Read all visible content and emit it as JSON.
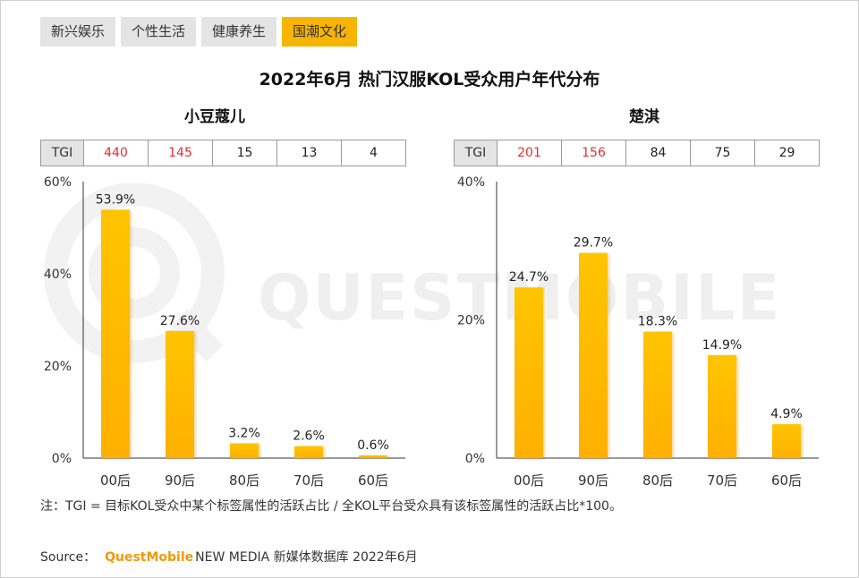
{
  "tabs": [
    {
      "label": "新兴娱乐",
      "active": false
    },
    {
      "label": "个性生活",
      "active": false
    },
    {
      "label": "健康养生",
      "active": false
    },
    {
      "label": "国潮文化",
      "active": true
    }
  ],
  "title": "2022年6月 热门汉服KOL受众用户年代分布",
  "watermark": "QUESTMOBILE",
  "tgi_label": "TGI",
  "chart_data": [
    {
      "type": "bar",
      "title": "小豆蔻儿",
      "categories": [
        "00后",
        "90后",
        "80后",
        "70后",
        "60后"
      ],
      "values": [
        53.9,
        27.6,
        3.2,
        2.6,
        0.6
      ],
      "value_labels": [
        "53.9%",
        "27.6%",
        "3.2%",
        "2.6%",
        "0.6%"
      ],
      "tgi": [
        "440",
        "145",
        "15",
        "13",
        "4"
      ],
      "tgi_highlight": [
        true,
        true,
        false,
        false,
        false
      ],
      "ylim": [
        0,
        60
      ],
      "yticks": [
        0,
        20,
        40,
        60
      ],
      "ytick_labels": [
        "0%",
        "20%",
        "40%",
        "60%"
      ],
      "grid": false,
      "bar_color": "#ffc107"
    },
    {
      "type": "bar",
      "title": "楚淇",
      "categories": [
        "00后",
        "90后",
        "80后",
        "70后",
        "60后"
      ],
      "values": [
        24.7,
        29.7,
        18.3,
        14.9,
        4.9
      ],
      "value_labels": [
        "24.7%",
        "29.7%",
        "18.3%",
        "14.9%",
        "4.9%"
      ],
      "tgi": [
        "201",
        "156",
        "84",
        "75",
        "29"
      ],
      "tgi_highlight": [
        true,
        true,
        false,
        false,
        false
      ],
      "ylim": [
        0,
        40
      ],
      "yticks": [
        0,
        20,
        40
      ],
      "ytick_labels": [
        "0%",
        "20%",
        "40%"
      ],
      "grid": false,
      "bar_color": "#ffc107"
    }
  ],
  "note": "注：TGI = 目标KOL受众中某个标签属性的活跃占比 / 全KOL平台受众具有该标签属性的活跃占比*100。",
  "source": {
    "prefix": "Source：",
    "brand": "QuestMobile",
    "suffix": "NEW MEDIA 新媒体数据库 2022年6月"
  },
  "colors": {
    "accent": "#f7b500",
    "highlight": "#e03030",
    "brand": "#f39800"
  }
}
